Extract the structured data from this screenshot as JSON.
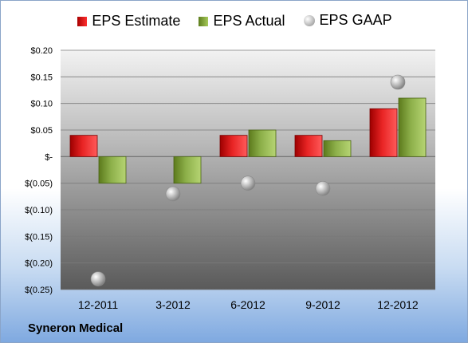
{
  "company_label": "Syneron Medical",
  "legend": {
    "estimate": "EPS Estimate",
    "actual": "EPS Actual",
    "gaap": "EPS GAAP"
  },
  "colors": {
    "estimate": "#e02020",
    "actual": "#8db04a",
    "gaap": "#b0b0b0"
  },
  "chart_data": {
    "type": "bar",
    "categories": [
      "12-2011",
      "3-2012",
      "6-2012",
      "9-2012",
      "12-2012"
    ],
    "series": [
      {
        "name": "EPS Estimate",
        "kind": "bar",
        "values": [
          0.04,
          null,
          0.04,
          0.04,
          0.09
        ]
      },
      {
        "name": "EPS Actual",
        "kind": "bar",
        "values": [
          -0.05,
          -0.05,
          0.05,
          0.03,
          0.11
        ]
      },
      {
        "name": "EPS GAAP",
        "kind": "scatter",
        "values": [
          -0.23,
          -0.07,
          -0.05,
          -0.06,
          0.14
        ]
      }
    ],
    "ylim": [
      -0.25,
      0.2
    ],
    "yticks": [
      0.2,
      0.15,
      0.1,
      0.05,
      0,
      -0.05,
      -0.1,
      -0.15,
      -0.2,
      -0.25
    ],
    "ytick_labels": [
      "$0.20",
      "$0.15",
      "$0.10",
      "$0.05",
      "$-",
      "$(0.05)",
      "$(0.10)",
      "$(0.15)",
      "$(0.20)",
      "$(0.25)"
    ],
    "legend_position": "top",
    "grid": true
  }
}
